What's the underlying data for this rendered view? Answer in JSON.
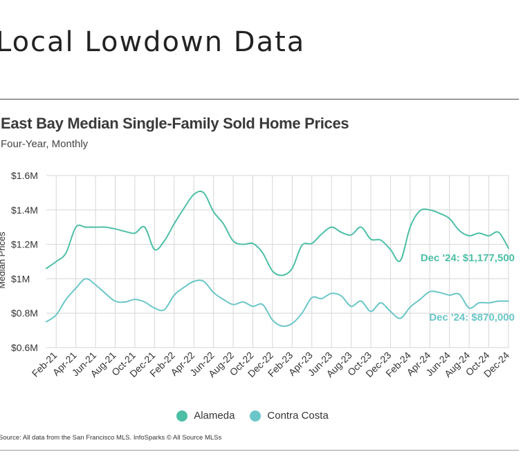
{
  "page": {
    "title": "Local Lowdown Data"
  },
  "chart_header": {
    "title": "East Bay Median Single-Family Sold Home Prices",
    "subtitle": "Four-Year, Monthly"
  },
  "source": "Source:  All data from the San Francisco MLS. InfoSparks © All Source MLSs",
  "chart_data": {
    "type": "line",
    "title": "East Bay Median Single-Family Sold Home Prices",
    "subtitle": "Four-Year, Monthly",
    "ylabel": "Median Prices",
    "xlabel": "",
    "ylim": [
      600000,
      1600000
    ],
    "y_ticks": [
      600000,
      800000,
      1000000,
      1200000,
      1400000,
      1600000
    ],
    "y_tick_labels": [
      "$0.6M",
      "$0.8M",
      "$1M",
      "$1.2M",
      "$1.4M",
      "$1.6M"
    ],
    "grid": true,
    "legend_position": "bottom",
    "x": [
      "Jan-21",
      "Feb-21",
      "Mar-21",
      "Apr-21",
      "May-21",
      "Jun-21",
      "Jul-21",
      "Aug-21",
      "Sep-21",
      "Oct-21",
      "Nov-21",
      "Dec-21",
      "Jan-22",
      "Feb-22",
      "Mar-22",
      "Apr-22",
      "May-22",
      "Jun-22",
      "Jul-22",
      "Aug-22",
      "Sep-22",
      "Oct-22",
      "Nov-22",
      "Dec-22",
      "Jan-23",
      "Feb-23",
      "Mar-23",
      "Apr-23",
      "May-23",
      "Jun-23",
      "Jul-23",
      "Aug-23",
      "Sep-23",
      "Oct-23",
      "Nov-23",
      "Dec-23",
      "Jan-24",
      "Feb-24",
      "Mar-24",
      "Apr-24",
      "May-24",
      "Jun-24",
      "Jul-24",
      "Aug-24",
      "Sep-24",
      "Oct-24",
      "Nov-24",
      "Dec-24"
    ],
    "x_tick_labels": [
      "Feb-21",
      "Apr-21",
      "Jun-21",
      "Aug-21",
      "Oct-21",
      "Dec-21",
      "Feb-22",
      "Apr-22",
      "Jun-22",
      "Aug-22",
      "Oct-22",
      "Dec-22",
      "Feb-23",
      "Apr-23",
      "Jun-23",
      "Aug-23",
      "Oct-23",
      "Dec-23",
      "Feb-24",
      "Apr-24",
      "Jun-24",
      "Aug-24",
      "Oct-24",
      "Dec-24"
    ],
    "series": [
      {
        "name": "Alameda",
        "color": "#4cbfa6",
        "values": [
          1060000,
          1100000,
          1150000,
          1300000,
          1300000,
          1300000,
          1300000,
          1290000,
          1275000,
          1265000,
          1300000,
          1170000,
          1220000,
          1320000,
          1410000,
          1490000,
          1500000,
          1390000,
          1320000,
          1220000,
          1200000,
          1205000,
          1150000,
          1045000,
          1020000,
          1060000,
          1195000,
          1205000,
          1260000,
          1300000,
          1270000,
          1255000,
          1300000,
          1230000,
          1225000,
          1170000,
          1105000,
          1300000,
          1395000,
          1400000,
          1380000,
          1350000,
          1280000,
          1250000,
          1265000,
          1250000,
          1270000,
          1177500
        ],
        "end_label": "Dec '24: $1,177,500"
      },
      {
        "name": "Contra Costa",
        "color": "#6ac6c8",
        "values": [
          750000,
          790000,
          880000,
          945000,
          1000000,
          965000,
          915000,
          870000,
          865000,
          880000,
          865000,
          830000,
          820000,
          905000,
          950000,
          985000,
          985000,
          920000,
          880000,
          850000,
          865000,
          840000,
          850000,
          760000,
          725000,
          740000,
          800000,
          890000,
          885000,
          915000,
          900000,
          840000,
          870000,
          810000,
          860000,
          810000,
          770000,
          835000,
          880000,
          925000,
          920000,
          905000,
          910000,
          830000,
          860000,
          860000,
          870000,
          870000
        ],
        "end_label": "Dec '24: $870,000"
      }
    ]
  }
}
